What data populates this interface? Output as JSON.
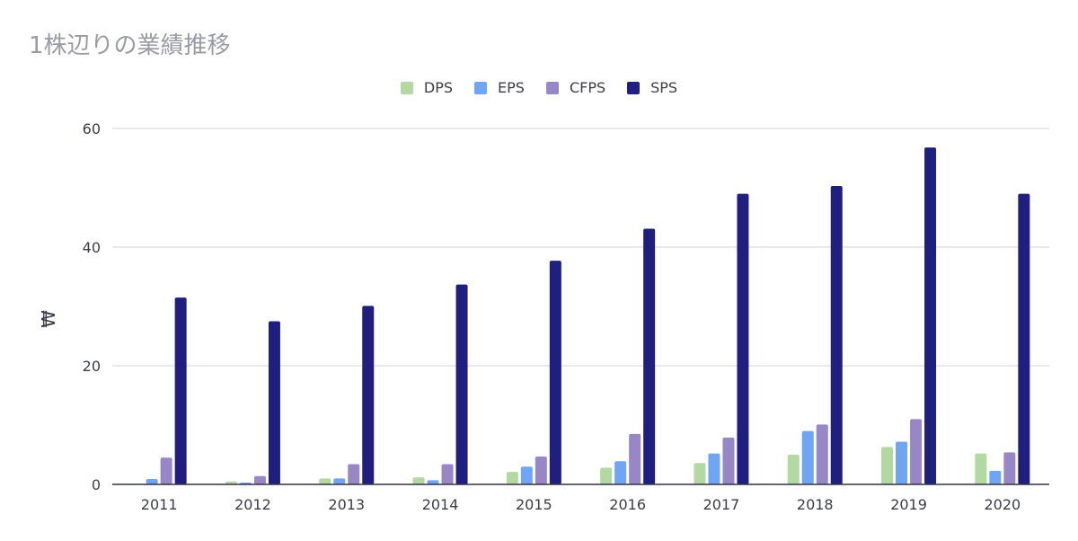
{
  "chart_data": {
    "type": "bar",
    "title": "1株辺りの業績推移",
    "ylabel": "₩",
    "xlabel": "",
    "categories": [
      "2011",
      "2012",
      "2013",
      "2014",
      "2015",
      "2016",
      "2017",
      "2018",
      "2019",
      "2020"
    ],
    "ylim": [
      0,
      60
    ],
    "yticks": [
      0,
      20,
      40,
      60
    ],
    "grid": true,
    "legend_position": "top",
    "series": [
      {
        "name": "DPS",
        "color": "#b3d9a3",
        "values": [
          0.1,
          0.5,
          1.0,
          1.2,
          2.1,
          2.8,
          3.6,
          5.0,
          6.3,
          5.2
        ]
      },
      {
        "name": "EPS",
        "color": "#6ea6f5",
        "values": [
          0.9,
          0.3,
          1.0,
          0.7,
          3.0,
          3.9,
          5.2,
          9.0,
          7.2,
          2.3
        ]
      },
      {
        "name": "CFPS",
        "color": "#9887c7",
        "values": [
          4.5,
          1.4,
          3.4,
          3.4,
          4.7,
          8.5,
          7.9,
          10.1,
          11.0,
          5.4
        ]
      },
      {
        "name": "SPS",
        "color": "#1f1f80",
        "values": [
          31.5,
          27.5,
          30.1,
          33.7,
          37.7,
          43.1,
          49.0,
          50.3,
          56.8,
          49.0
        ]
      }
    ]
  }
}
